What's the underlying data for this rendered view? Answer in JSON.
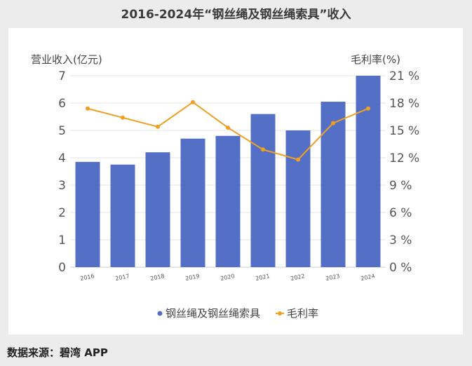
{
  "title": "2016-2024年“钢丝绳及钢丝绳索具”收入",
  "source": "数据来源：碧湾 APP",
  "chart_data": {
    "type": "bar+line",
    "categories": [
      "2016",
      "2017",
      "2018",
      "2019",
      "2020",
      "2021",
      "2022",
      "2023",
      "2024"
    ],
    "series": [
      {
        "name": "钢丝绳及钢丝绳索具",
        "type": "bar",
        "axis": "left",
        "color": "#5470c6",
        "values": [
          3.85,
          3.75,
          4.2,
          4.7,
          4.8,
          5.6,
          5.0,
          6.05,
          7.0
        ]
      },
      {
        "name": "毛利率",
        "type": "line",
        "axis": "right",
        "color": "#f0a020",
        "values": [
          17.4,
          16.4,
          15.4,
          18.1,
          15.3,
          12.9,
          11.8,
          15.8,
          17.4
        ]
      }
    ],
    "y_left": {
      "label": "营业收入(亿元)",
      "range": [
        0,
        7
      ],
      "ticks": [
        "0",
        "1",
        "2",
        "3",
        "4",
        "5",
        "6",
        "7"
      ]
    },
    "y_right": {
      "label": "毛利率(%)",
      "range": [
        0,
        21
      ],
      "ticks": [
        "0 %",
        "3 %",
        "6 %",
        "9 %",
        "12 %",
        "15 %",
        "18 %",
        "21 %"
      ]
    },
    "grid": true,
    "legend": "bottom"
  }
}
